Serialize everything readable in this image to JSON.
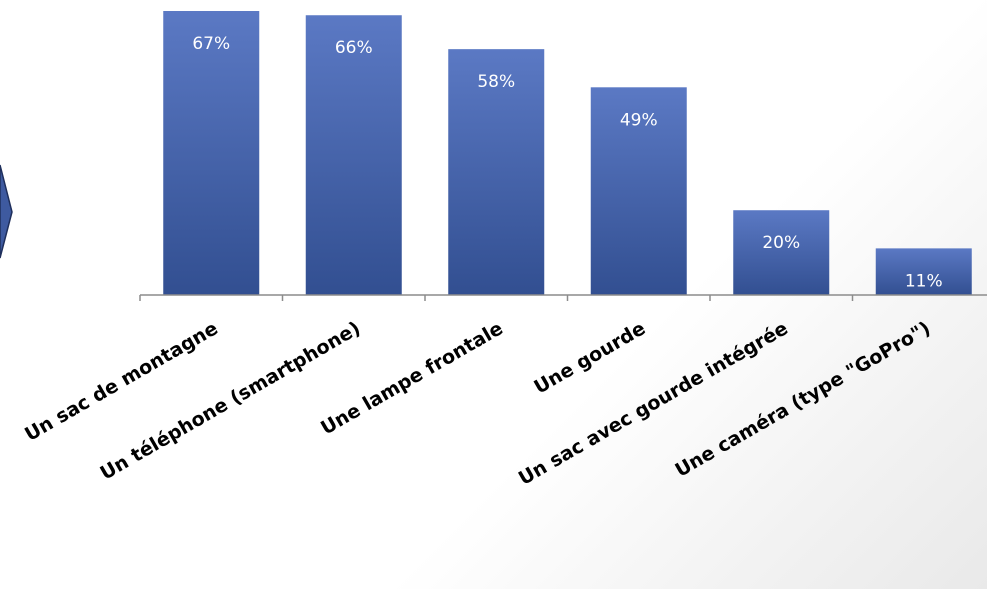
{
  "chart_data": {
    "type": "bar",
    "categories": [
      "Un sac de montagne",
      "Un téléphone (smartphone)",
      "Une lampe frontale",
      "Une gourde",
      "Un sac avec gourde intégrée",
      "Une caméra  (type \"GoPro\")"
    ],
    "values": [
      67,
      66,
      58,
      49,
      20,
      11
    ],
    "data_labels": [
      "67%",
      "66%",
      "58%",
      "49%",
      "20%",
      "11%"
    ],
    "unit": "%",
    "ylim": [
      0,
      70
    ],
    "title": "",
    "xlabel": "",
    "ylabel": "",
    "grid": false,
    "legend": "none",
    "colors": {
      "bar_top": "#5b79c4",
      "bar_bottom": "#324f91",
      "axis": "#8c8c8c",
      "data_label": "#ffffff",
      "category_label": "#000000"
    }
  }
}
